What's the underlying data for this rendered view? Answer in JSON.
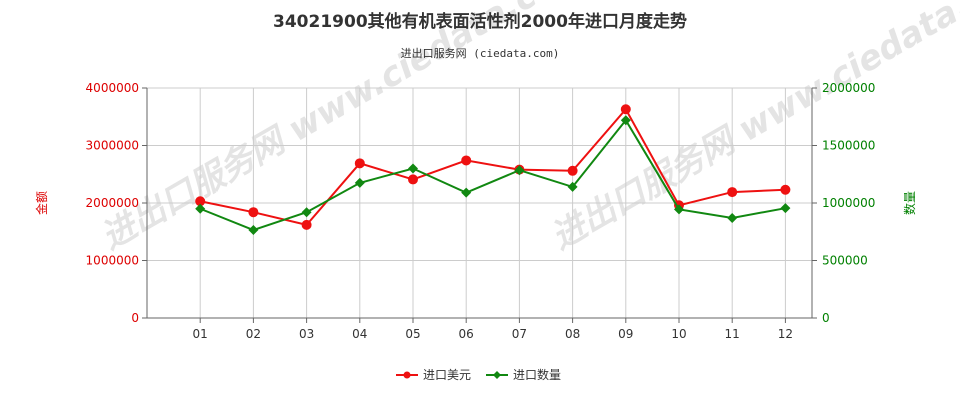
{
  "colors": {
    "left_axis": "#dd0000",
    "right_axis": "#008000",
    "series_usd": "#ee1111",
    "series_qty": "#118811",
    "grid": "#cccccc",
    "axis": "#666666"
  },
  "chart_data": {
    "type": "line",
    "title": "34021900其他有机表面活性剂2000年进口月度走势",
    "subtitle": "进出口服务网 (ciedata.com)",
    "watermark": "进出口服务网 www.ciedata.com",
    "categories": [
      "01",
      "02",
      "03",
      "04",
      "05",
      "06",
      "07",
      "08",
      "09",
      "10",
      "11",
      "12"
    ],
    "y_left": {
      "label": "金额",
      "range": [
        0,
        4000000
      ],
      "ticks": [
        "0",
        "1000000",
        "2000000",
        "3000000",
        "4000000"
      ]
    },
    "y_right": {
      "label": "数量",
      "range": [
        0,
        2000000
      ],
      "ticks": [
        "0",
        "500000",
        "1000000",
        "1500000",
        "2000000"
      ]
    },
    "grid": true,
    "legend_position": "bottom",
    "series": [
      {
        "name": "进口美元",
        "axis": "left",
        "marker": "circle",
        "values": [
          2030000,
          1840000,
          1620000,
          2690000,
          2410000,
          2740000,
          2580000,
          2560000,
          3630000,
          1960000,
          2190000,
          2230000
        ]
      },
      {
        "name": "进口数量",
        "axis": "right",
        "marker": "diamond",
        "values": [
          950000,
          765000,
          920000,
          1175000,
          1300000,
          1090000,
          1285000,
          1140000,
          1720000,
          945000,
          870000,
          955000
        ]
      }
    ]
  }
}
